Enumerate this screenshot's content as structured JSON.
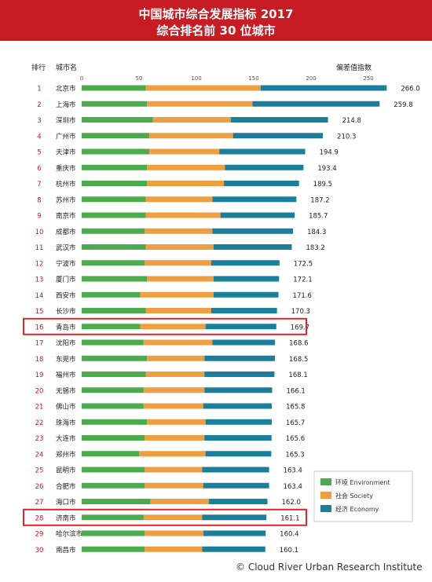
{
  "title": "中国城市综合发展指标 2017",
  "subtitle": "综合排名前 30 位城市",
  "source": "© Cloud River Urban Research Institute",
  "colors": {
    "banner": "#c81c24",
    "environment": "#4bab4d",
    "society": "#ef9e42",
    "economy": "#1a7f9a",
    "highlight": "#d9252b"
  },
  "chart_data": {
    "type": "bar",
    "orientation": "horizontal",
    "stacked": true,
    "header_rank": "排行",
    "header_city": "城市名",
    "header_value": "偏差值指数",
    "xlim": [
      0,
      250
    ],
    "xticks": [
      0,
      50,
      100,
      150,
      200,
      250
    ],
    "grid": false,
    "legend_position": "bottom-right",
    "legend": [
      "环境 Environment",
      "社会 Society",
      "经济 Economy"
    ],
    "highlighted_ranks": [
      16,
      28
    ],
    "ranks": [
      1,
      2,
      3,
      4,
      5,
      6,
      7,
      8,
      9,
      10,
      11,
      12,
      13,
      14,
      15,
      16,
      17,
      18,
      19,
      20,
      21,
      22,
      23,
      24,
      25,
      26,
      27,
      28,
      29,
      30
    ],
    "categories": [
      "北京市",
      "上海市",
      "深圳市",
      "广州市",
      "天津市",
      "重庆市",
      "杭州市",
      "苏州市",
      "南京市",
      "成都市",
      "武汉市",
      "宁波市",
      "厦门市",
      "西安市",
      "长沙市",
      "青岛市",
      "沈阳市",
      "东莞市",
      "福州市",
      "无锡市",
      "佛山市",
      "珠海市",
      "大连市",
      "郑州市",
      "昆明市",
      "合肥市",
      "海口市",
      "济南市",
      "哈尔滨市",
      "南昌市"
    ],
    "totals": [
      "266.0",
      "259.8",
      "214.8",
      "210.3",
      "194.9",
      "193.4",
      "189.5",
      "187.2",
      "185.7",
      "184.3",
      "183.2",
      "172.5",
      "172.1",
      "171.6",
      "170.3",
      "169.7",
      "168.6",
      "168.5",
      "168.1",
      "166.1",
      "165.8",
      "165.7",
      "165.6",
      "165.3",
      "163.4",
      "163.4",
      "162.0",
      "161.1",
      "160.4",
      "160.1"
    ],
    "series": [
      {
        "name": "环境 Environment",
        "values": [
          56,
          57,
          62,
          59,
          59,
          57,
          57,
          56,
          56,
          55,
          56,
          55,
          57,
          51,
          56,
          51,
          54,
          57,
          56,
          54,
          54,
          57,
          55,
          50,
          55,
          55,
          60,
          54,
          55,
          55
        ]
      },
      {
        "name": "社会 Society",
        "values": [
          100,
          92,
          68,
          73,
          61,
          68,
          67,
          58,
          65,
          59,
          59,
          58,
          58,
          64,
          57,
          57,
          60,
          50,
          51,
          53,
          52,
          51,
          52,
          58,
          50,
          51,
          51,
          51,
          51,
          50
        ]
      },
      {
        "name": "经济 Economy",
        "values": [
          110,
          110.8,
          84.8,
          78.3,
          74.9,
          68.4,
          65.5,
          73.2,
          64.7,
          70.3,
          68.2,
          59.5,
          57.1,
          56.6,
          57.3,
          61.7,
          54.6,
          61.5,
          61.1,
          59.1,
          59.8,
          57.7,
          58.6,
          57.3,
          58.4,
          57.4,
          51,
          56.1,
          54.4,
          55.1
        ]
      }
    ]
  }
}
